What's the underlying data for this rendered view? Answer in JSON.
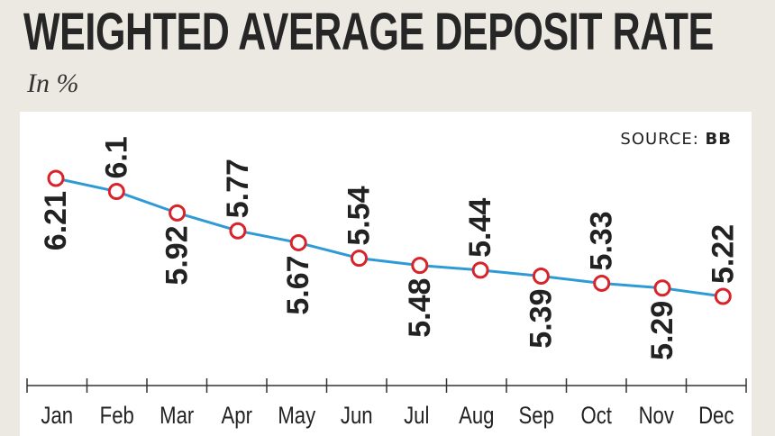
{
  "header": {
    "title": "WEIGHTED AVERAGE DEPOSIT RATE",
    "subtitle": "In %"
  },
  "source": {
    "label": "SOURCE:",
    "value": "BB"
  },
  "colors": {
    "line": "#2f9bd6",
    "marker_stroke": "#d8232a",
    "marker_fill": "#ffffff",
    "text": "#222222",
    "background": "#ebe9e1",
    "panel": "#ffffff"
  },
  "chart_data": {
    "type": "line",
    "title": "WEIGHTED AVERAGE DEPOSIT RATE",
    "subtitle": "In %",
    "categories": [
      "Jan",
      "Feb",
      "Mar",
      "Apr",
      "May",
      "Jun",
      "Jul",
      "Aug",
      "Sep",
      "Oct",
      "Nov",
      "Dec"
    ],
    "values": [
      6.21,
      6.1,
      5.92,
      5.77,
      5.67,
      5.54,
      5.48,
      5.44,
      5.39,
      5.33,
      5.29,
      5.22
    ],
    "value_labels": [
      "6.21",
      "6.1",
      "5.92",
      "5.77",
      "5.67",
      "5.54",
      "5.48",
      "5.44",
      "5.39",
      "5.33",
      "5.29",
      "5.22"
    ],
    "label_position": [
      "below",
      "above",
      "below",
      "above",
      "below",
      "above",
      "below",
      "above",
      "below",
      "above",
      "below",
      "above"
    ],
    "grid": false,
    "legend": "none"
  }
}
